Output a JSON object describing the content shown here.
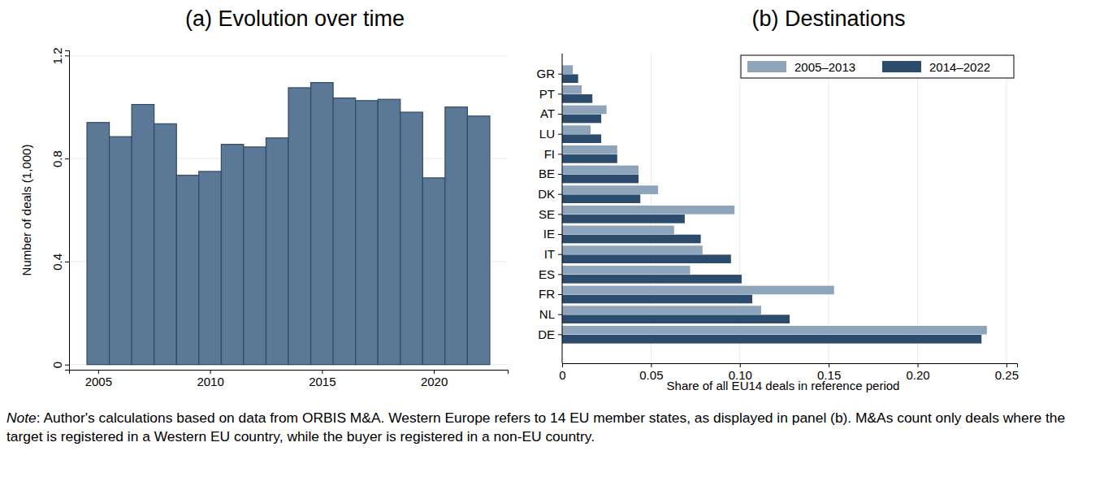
{
  "chart_data": [
    {
      "type": "bar",
      "title": "(a) Evolution over time",
      "x": [
        2005,
        2006,
        2007,
        2008,
        2009,
        2010,
        2011,
        2012,
        2013,
        2014,
        2015,
        2016,
        2017,
        2018,
        2019,
        2020,
        2021,
        2022
      ],
      "values": [
        0.94,
        0.885,
        1.01,
        0.935,
        0.735,
        0.75,
        0.855,
        0.845,
        0.88,
        1.075,
        1.095,
        1.035,
        1.025,
        1.03,
        0.98,
        0.725,
        1.0,
        0.965
      ],
      "color": "#5b7897",
      "xlim": [
        2003.7,
        2023.3
      ],
      "xticks": [
        2005,
        2010,
        2015,
        2020
      ],
      "ylim": [
        -0.02,
        1.22
      ],
      "yticks": [
        0,
        0.4,
        0.8,
        1.2
      ],
      "y_label": "Number of deals (1,000)",
      "grid": true
    },
    {
      "type": "bar",
      "orientation": "horizontal",
      "title": "(b) Destinations",
      "categories": [
        "GR",
        "PT",
        "AT",
        "LU",
        "FI",
        "BE",
        "DK",
        "SE",
        "IE",
        "IT",
        "ES",
        "FR",
        "NL",
        "DE"
      ],
      "series": [
        {
          "name": "2005–2013",
          "color": "#8ea4bb",
          "values": [
            0.006,
            0.011,
            0.025,
            0.016,
            0.031,
            0.043,
            0.054,
            0.097,
            0.063,
            0.079,
            0.072,
            0.153,
            0.112,
            0.239
          ]
        },
        {
          "name": "2014–2022",
          "color": "#2c4c6e",
          "values": [
            0.009,
            0.017,
            0.022,
            0.022,
            0.031,
            0.043,
            0.044,
            0.069,
            0.078,
            0.095,
            0.101,
            0.107,
            0.128,
            0.236
          ]
        }
      ],
      "xlim": [
        0,
        0.256
      ],
      "xticks": [
        0,
        0.05,
        {
          "value": 0.1,
          "label": "0.10"
        },
        0.15,
        {
          "value": 0.2,
          "label": "0.20"
        },
        0.25
      ],
      "x_label": "Share of all EU14 deals in reference period",
      "grid": true,
      "legend": "top-right"
    }
  ],
  "note": {
    "label": "Note",
    "text": ": Author's calculations based on data from ORBIS M&A. Western Europe refers to 14 EU member states, as displayed in panel (b). M&As count only deals where the target is registered in a Western EU country, while the buyer is registered in a non-EU country."
  }
}
